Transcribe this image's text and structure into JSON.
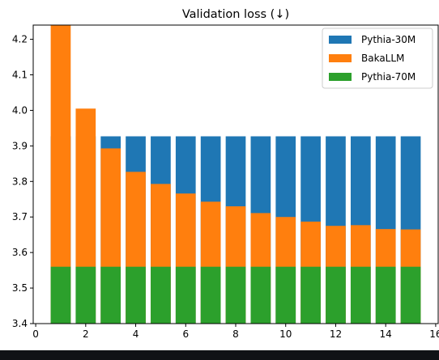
{
  "chart_data": {
    "type": "bar",
    "title": "Validation loss (↓)",
    "xlabel": "",
    "ylabel": "",
    "x": [
      1,
      2,
      3,
      4,
      5,
      6,
      7,
      8,
      9,
      10,
      11,
      12,
      13,
      14,
      15
    ],
    "xlim": [
      -0.1,
      16.1
    ],
    "ylim": [
      3.4,
      4.24
    ],
    "xticks": [
      0,
      2,
      4,
      6,
      8,
      10,
      12,
      14,
      16
    ],
    "yticks": [
      3.4,
      3.5,
      3.6,
      3.7,
      3.8,
      3.9,
      4.0,
      4.1,
      4.2
    ],
    "bar_width": 0.8,
    "series": [
      {
        "name": "Pythia-30M",
        "color": "#1f77b4",
        "values": [
          3.927,
          3.927,
          3.927,
          3.927,
          3.927,
          3.927,
          3.927,
          3.927,
          3.927,
          3.927,
          3.927,
          3.927,
          3.927,
          3.927,
          3.927
        ]
      },
      {
        "name": "BakaLLM",
        "color": "#ff7f0e",
        "values": [
          4.24,
          4.005,
          3.893,
          3.827,
          3.793,
          3.766,
          3.743,
          3.73,
          3.711,
          3.7,
          3.687,
          3.675,
          3.677,
          3.666,
          3.665
        ]
      },
      {
        "name": "Pythia-70M",
        "color": "#2ca02c",
        "values": [
          3.56,
          3.56,
          3.56,
          3.56,
          3.56,
          3.56,
          3.56,
          3.56,
          3.56,
          3.56,
          3.56,
          3.56,
          3.56,
          3.56,
          3.56
        ]
      }
    ],
    "legend": "top-right",
    "grid": false
  }
}
